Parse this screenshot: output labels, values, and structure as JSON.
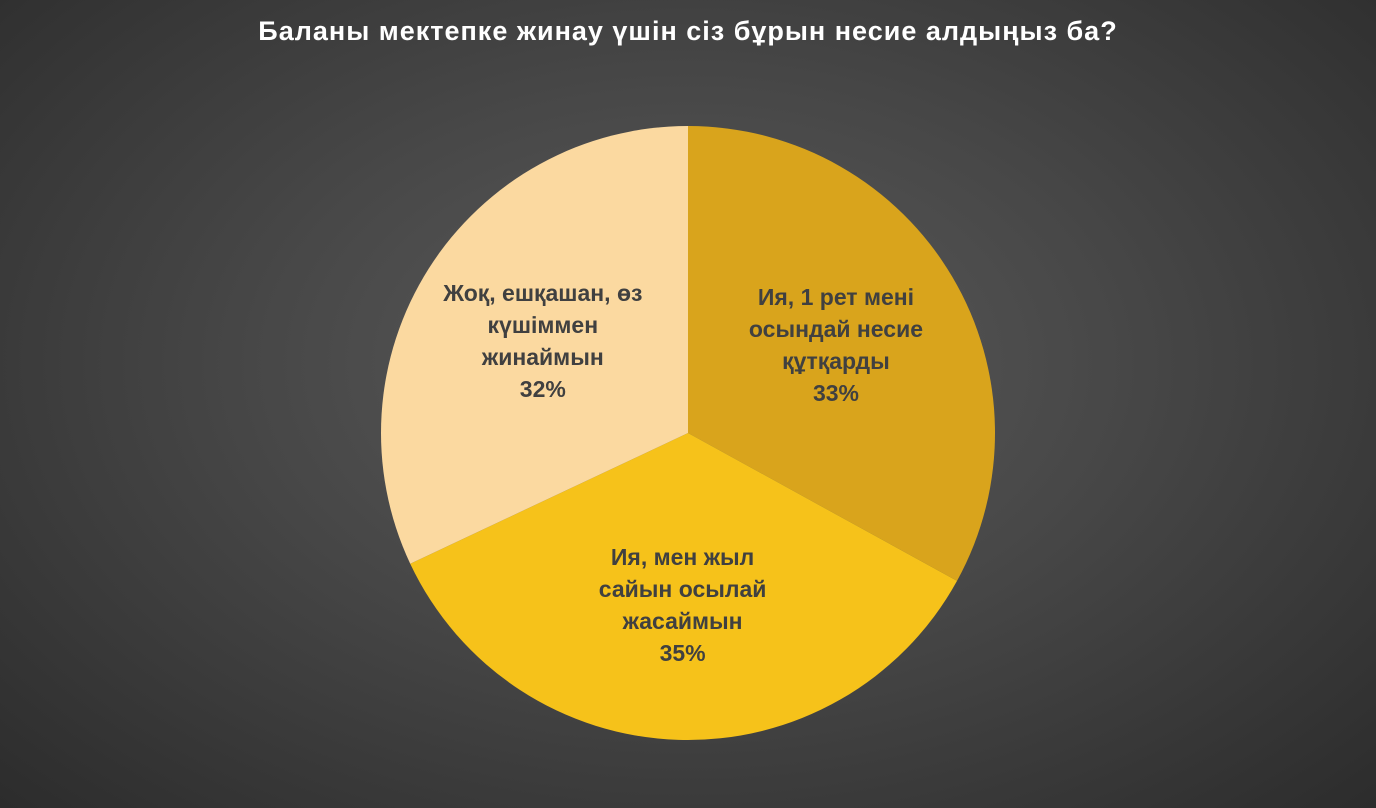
{
  "chart_data": {
    "type": "pie",
    "title": "Баланы мектепке жинау үшін сіз бұрын несие алдыңыз ба?",
    "categories": [
      "Ия, 1 рет мені осындай несие құтқарды",
      "Ия, мен жыл сайын осылай жасаймын",
      "Жоқ, ешқашан, өз күшіммен жинаймын"
    ],
    "values": [
      33,
      35,
      32
    ],
    "value_labels": [
      "33%",
      "35%",
      "32%"
    ],
    "colors": [
      "#d9a41c",
      "#f6c21a",
      "#fbd9a0"
    ]
  }
}
